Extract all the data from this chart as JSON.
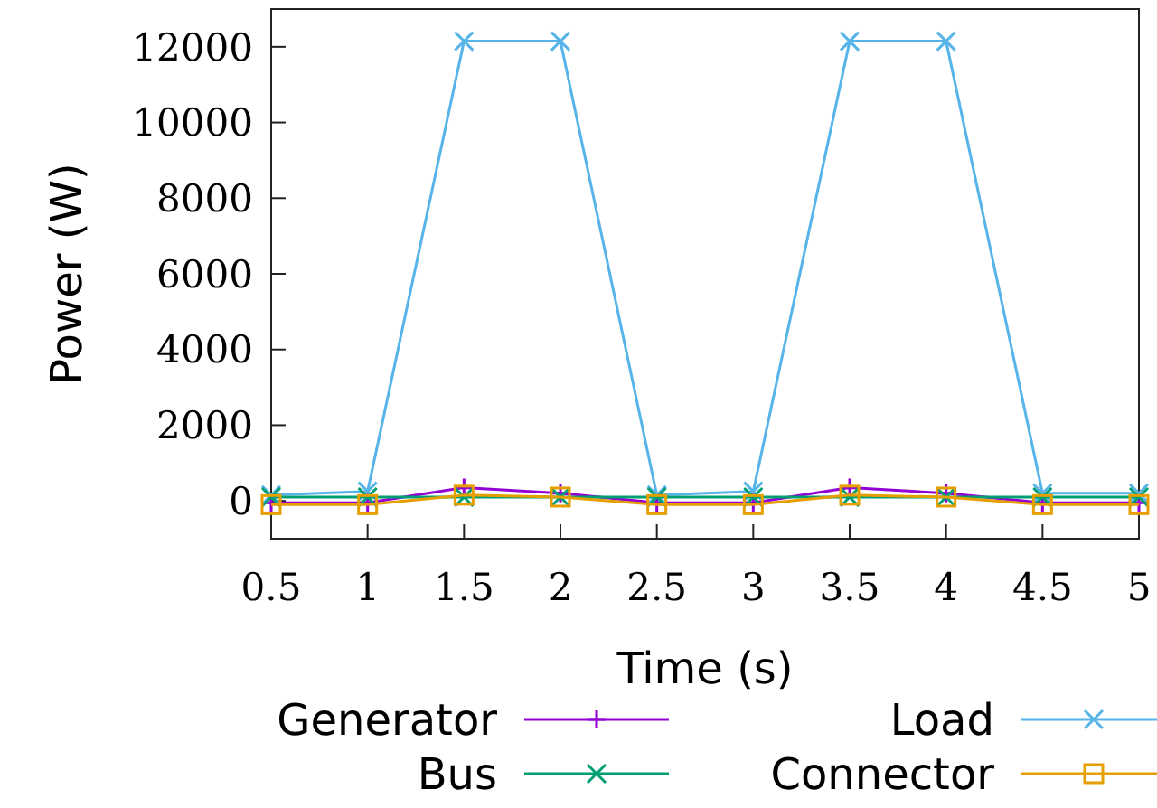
{
  "chart_data": {
    "type": "line",
    "xlabel": "Time (s)",
    "ylabel": "Power (W)",
    "x": [
      0.5,
      1,
      1.5,
      2,
      2.5,
      3,
      3.5,
      4,
      4.5,
      5
    ],
    "xlim": [
      0.5,
      5
    ],
    "xticks": [
      0.5,
      1,
      1.5,
      2,
      2.5,
      3,
      3.5,
      4,
      4.5,
      5
    ],
    "ylim": [
      -1000,
      13000
    ],
    "yticks": [
      0,
      2000,
      4000,
      6000,
      8000,
      10000,
      12000
    ],
    "grid": false,
    "legend": "bottom",
    "line_style": "solid",
    "series": [
      {
        "name": "Generator",
        "color": "#9400d3",
        "marker": "plus",
        "values": [
          -50,
          -50,
          350,
          200,
          -50,
          -50,
          350,
          200,
          -50,
          -50
        ]
      },
      {
        "name": "Load",
        "color": "#56b4e9",
        "marker": "cross",
        "values": [
          150,
          250,
          12150,
          12150,
          150,
          250,
          12150,
          12150,
          200,
          200
        ]
      },
      {
        "name": "Bus",
        "color": "#009e73",
        "marker": "cross",
        "values": [
          100,
          100,
          100,
          100,
          100,
          100,
          100,
          100,
          100,
          100
        ]
      },
      {
        "name": "Connector",
        "color": "#e69f00",
        "marker": "square",
        "values": [
          -100,
          -100,
          150,
          100,
          -100,
          -100,
          150,
          100,
          -100,
          -100
        ]
      }
    ]
  }
}
